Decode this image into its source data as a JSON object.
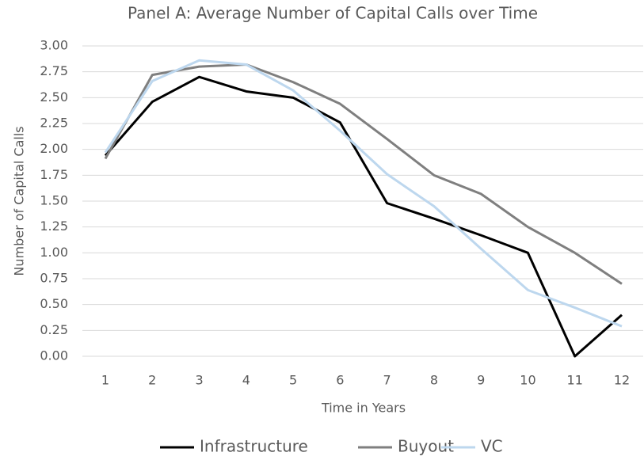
{
  "chart_data": {
    "type": "line",
    "title": "Panel A: Average Number of Capital Calls over Time",
    "x_label": "Time in Years",
    "y_label": "Number of Capital Calls",
    "categories": [
      1,
      2,
      3,
      4,
      5,
      6,
      7,
      8,
      9,
      10,
      11,
      12
    ],
    "series": [
      {
        "name": "Infrastructure",
        "color": "#000000",
        "values": [
          1.94,
          2.46,
          2.7,
          2.56,
          2.5,
          2.26,
          1.48,
          1.33,
          1.17,
          1.0,
          0,
          0.4
        ]
      },
      {
        "name": "Buyout",
        "color": "#7f7f7f",
        "values": [
          1.91,
          2.72,
          2.8,
          2.82,
          2.65,
          2.44,
          2.1,
          1.75,
          1.57,
          1.25,
          1.0,
          0.7
        ]
      },
      {
        "name": "VC",
        "color": "#bdd7ee",
        "values": [
          1.97,
          2.66,
          2.86,
          2.82,
          2.57,
          2.18,
          1.76,
          1.45,
          1.04,
          0.64,
          0.47,
          0.29
        ]
      }
    ],
    "ylim": [
      0,
      3
    ],
    "yticks": [
      {
        "value": 0,
        "label": "0.00"
      },
      {
        "value": 0.25,
        "label": "0.25"
      },
      {
        "value": 0.5,
        "label": "0.50"
      },
      {
        "value": 0.75,
        "label": "0.75"
      },
      {
        "value": 1,
        "label": "1.00"
      },
      {
        "value": 1.25,
        "label": "1.25"
      },
      {
        "value": 1.5,
        "label": "1.50"
      },
      {
        "value": 1.75,
        "label": "1.75"
      },
      {
        "value": 2,
        "label": "2.00"
      },
      {
        "value": 2.25,
        "label": "2.25"
      },
      {
        "value": 2.5,
        "label": "2.50"
      },
      {
        "value": 2.75,
        "label": "2.75"
      },
      {
        "value": 3,
        "label": "3.00"
      }
    ],
    "grid": true,
    "legend": "bottom"
  }
}
